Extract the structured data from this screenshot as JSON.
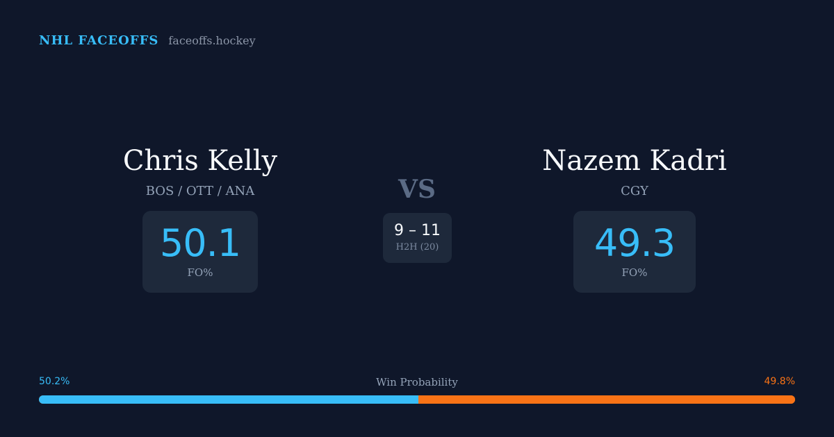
{
  "brand": {
    "name": "NHL FACEOFFS",
    "domain": "faceoffs.hockey"
  },
  "player_left": {
    "name": "Chris Kelly",
    "team": "BOS / OTT / ANA",
    "stat_value": "50.1",
    "stat_label": "FO%"
  },
  "player_right": {
    "name": "Nazem Kadri",
    "team": "CGY",
    "stat_value": "49.3",
    "stat_label": "FO%"
  },
  "matchup": {
    "vs_label": "VS",
    "h2h_score": "9 – 11",
    "h2h_label": "H2H (20)"
  },
  "win_probability": {
    "title": "Win Probability",
    "left_label": "50.2%",
    "right_label": "49.8%",
    "left_percent": 50.2,
    "right_percent": 49.8,
    "left_color": "#38bdf8",
    "right_color": "#f97316"
  }
}
